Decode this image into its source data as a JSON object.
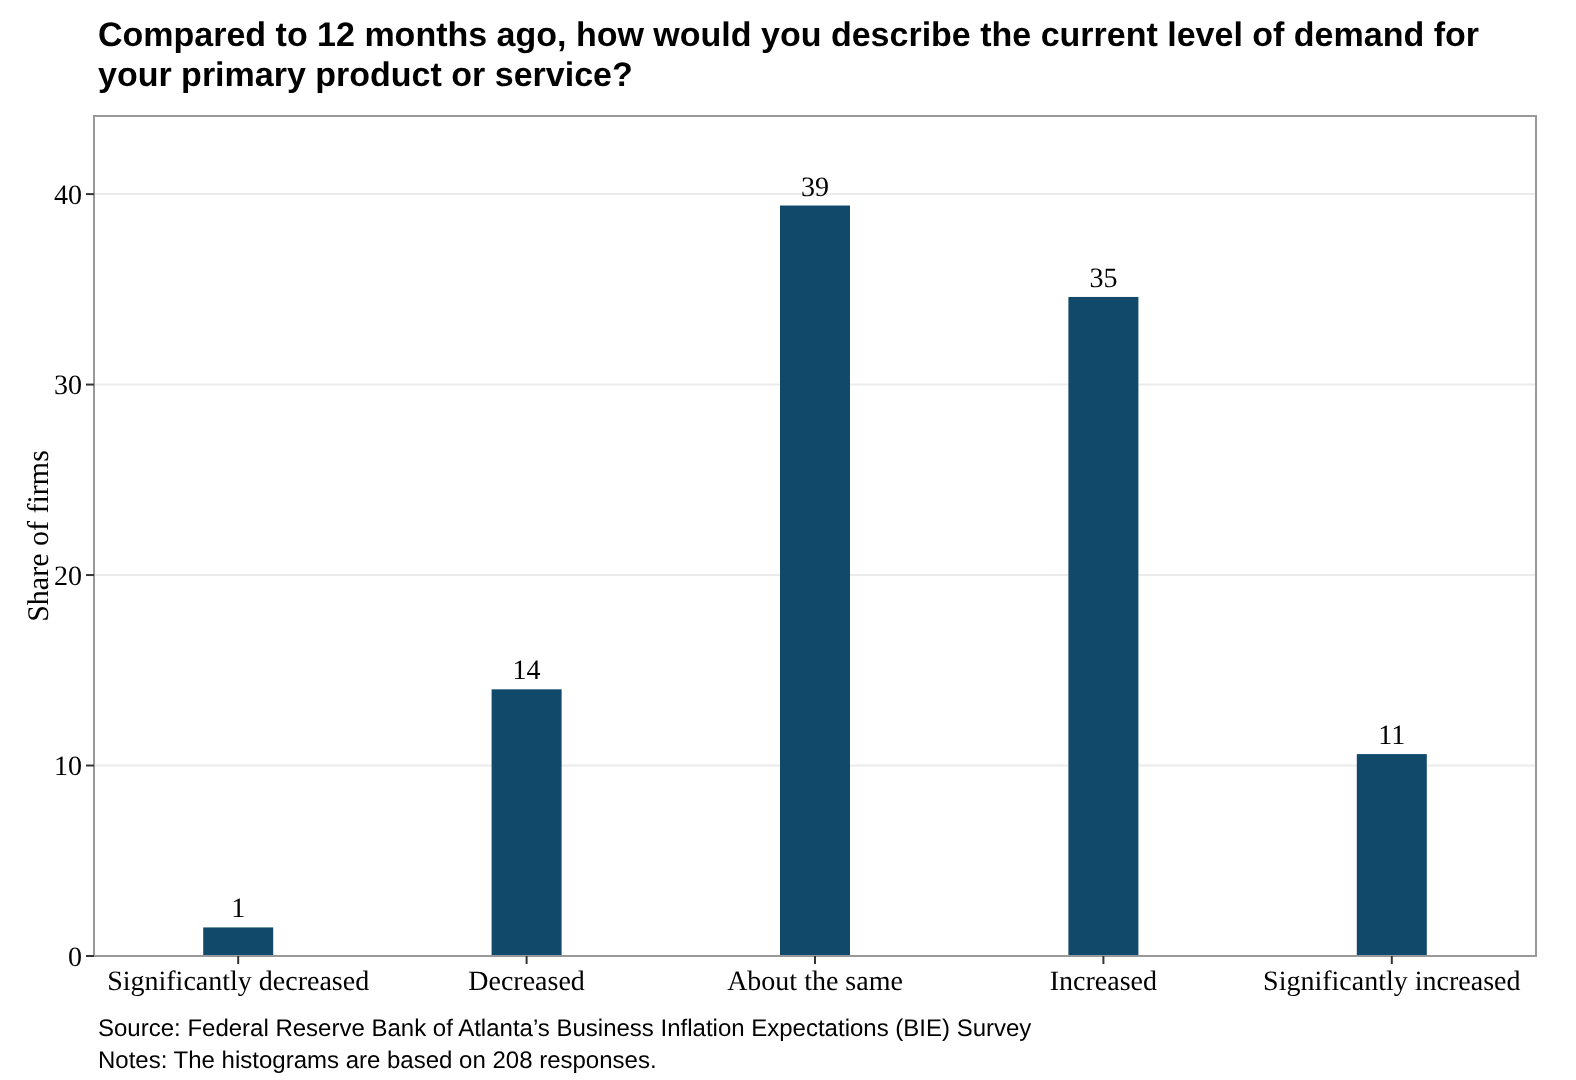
{
  "chart_data": {
    "type": "bar",
    "title": "Compared to 12 months ago, how would you describe the current level of demand for your primary product or service?",
    "ylabel": "Share of firms",
    "categories": [
      "Significantly decreased",
      "Decreased",
      "About the same",
      "Increased",
      "Significantly increased"
    ],
    "values": [
      1.5,
      14,
      39.4,
      34.6,
      10.6
    ],
    "value_labels": [
      "1",
      "14",
      "39",
      "35",
      "11"
    ],
    "color": "#11496a",
    "ylim": [
      0,
      44.1
    ],
    "yticks": [
      0,
      10,
      20,
      30,
      40
    ],
    "grid": "y",
    "annotations": [
      "Source: Federal Reserve Bank of Atlanta’s Business Inflation Expectations (BIE) Survey",
      "Notes: The histograms are based on 208 responses."
    ]
  }
}
